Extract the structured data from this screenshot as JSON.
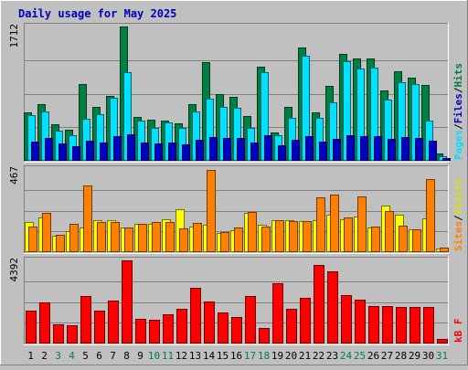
{
  "title": "Daily usage for May 2025",
  "chart_data": [
    {
      "type": "bar",
      "panel": "hits",
      "categories": [
        "1",
        "2",
        "3",
        "4",
        "5",
        "6",
        "7",
        "8",
        "9",
        "10",
        "11",
        "12",
        "13",
        "14",
        "15",
        "16",
        "17",
        "18",
        "19",
        "20",
        "21",
        "22",
        "23",
        "24",
        "25",
        "26",
        "27",
        "28",
        "29",
        "30",
        "31"
      ],
      "weekend_days": [
        "3",
        "4",
        "10",
        "11",
        "17",
        "18",
        "24",
        "25",
        "31"
      ],
      "ymax_label": "1712",
      "ylim": [
        0,
        1712
      ],
      "legend": [
        "Pages",
        "Files",
        "Hits"
      ],
      "series": [
        {
          "name": "Hits",
          "color": "#008040",
          "values": [
            623,
            725,
            465,
            397,
            980,
            689,
            830,
            1712,
            564,
            523,
            508,
            477,
            723,
            1254,
            851,
            816,
            569,
            1194,
            357,
            690,
            1447,
            615,
            955,
            1366,
            1302,
            1307,
            898,
            1142,
            1059,
            962,
            91
          ]
        },
        {
          "name": "Files",
          "color": "#00e0ff",
          "values": [
            581,
            633,
            380,
            329,
            532,
            594,
            798,
            1129,
            508,
            421,
            486,
            422,
            626,
            789,
            682,
            678,
            421,
            1129,
            324,
            547,
            1345,
            552,
            747,
            1274,
            1174,
            1193,
            784,
            1006,
            978,
            517,
            61
          ]
        },
        {
          "name": "Pages",
          "color": "#0000c0",
          "values": [
            241,
            295,
            217,
            182,
            262,
            236,
            309,
            332,
            238,
            226,
            232,
            214,
            271,
            299,
            288,
            287,
            233,
            325,
            200,
            266,
            315,
            246,
            281,
            322,
            312,
            313,
            275,
            300,
            292,
            254,
            31
          ]
        }
      ]
    },
    {
      "type": "bar",
      "panel": "visits",
      "categories": [
        "1",
        "2",
        "3",
        "4",
        "5",
        "6",
        "7",
        "8",
        "9",
        "10",
        "11",
        "12",
        "13",
        "14",
        "15",
        "16",
        "17",
        "18",
        "19",
        "20",
        "21",
        "22",
        "23",
        "24",
        "25",
        "26",
        "27",
        "28",
        "29",
        "30",
        "31"
      ],
      "ymax_label": "467",
      "ylim": [
        0,
        467
      ],
      "legend": [
        "Sites",
        "Visits"
      ],
      "series": [
        {
          "name": "Visits",
          "color": "#ffff00",
          "values": [
            171,
            196,
            92,
            117,
            139,
            180,
            178,
            139,
            158,
            160,
            186,
            242,
            143,
            152,
            110,
            124,
            220,
            155,
            182,
            182,
            173,
            179,
            208,
            185,
            200,
            141,
            260,
            211,
            128,
            189,
            21
          ]
        },
        {
          "name": "Sites",
          "color": "#ff8000",
          "values": [
            145,
            223,
            96,
            159,
            377,
            170,
            169,
            141,
            158,
            170,
            170,
            134,
            164,
            461,
            115,
            137,
            227,
            145,
            178,
            173,
            172,
            307,
            322,
            195,
            315,
            144,
            233,
            151,
            127,
            410,
            26
          ]
        }
      ]
    },
    {
      "type": "bar",
      "panel": "kbytes",
      "categories": [
        "1",
        "2",
        "3",
        "4",
        "5",
        "6",
        "7",
        "8",
        "9",
        "10",
        "11",
        "12",
        "13",
        "14",
        "15",
        "16",
        "17",
        "18",
        "19",
        "20",
        "21",
        "22",
        "23",
        "24",
        "25",
        "26",
        "27",
        "28",
        "29",
        "30",
        "31"
      ],
      "ymax_label": "4392",
      "ylim": [
        0,
        4392
      ],
      "legend": [
        "kB F"
      ],
      "series": [
        {
          "name": "kB F",
          "color": "#ff0000",
          "values": [
            1753,
            2165,
            1031,
            943,
            2495,
            1753,
            2288,
            4392,
            1283,
            1278,
            1557,
            1816,
            2928,
            2200,
            1660,
            1394,
            2495,
            842,
            3180,
            1817,
            2432,
            4152,
            3795,
            2538,
            2330,
            1985,
            1984,
            1915,
            1915,
            1935,
            238
          ]
        }
      ]
    }
  ]
}
